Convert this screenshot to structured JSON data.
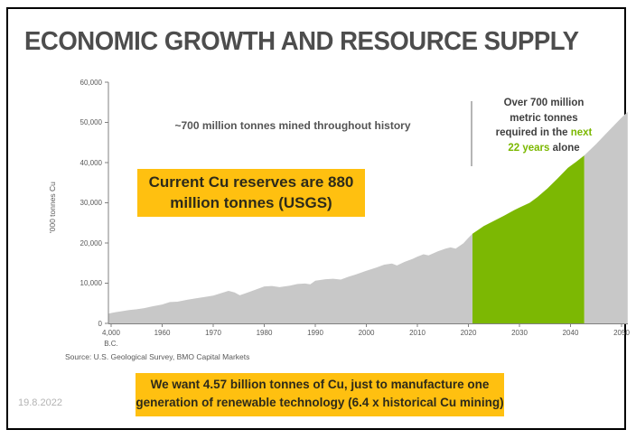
{
  "slide": {
    "title": "ECONOMIC GROWTH AND RESOURCE SUPPLY",
    "source": "Source: U.S. Geological Survey, BMO Capital Markets",
    "date": "19.8.2022"
  },
  "annotations": {
    "history_note": "~700 million tonnes mined throughout history",
    "reserves_box_lines": [
      "Current Cu reserves are 880",
      "million tonnes (USGS)"
    ],
    "demand_box_lines": [
      "We want 4.57 billion tonnes of Cu, just to manufacture one",
      "generation of renewable technology (6.4 x historical Cu mining)"
    ],
    "future_note_lines": [
      [
        {
          "t": "Over 700 million",
          "c": "dark"
        }
      ],
      [
        {
          "t": "metric tonnes",
          "c": "dark"
        }
      ],
      [
        {
          "t": "required in the ",
          "c": "dark"
        },
        {
          "t": "next",
          "c": "green"
        }
      ],
      [
        {
          "t": "22 years",
          "c": "green"
        },
        {
          "t": " alone",
          "c": "dark"
        }
      ]
    ]
  },
  "colors": {
    "title_gray": "#4d4d4d",
    "callout_yellow": "#ffc010",
    "area_gray": "#c8c8c8",
    "area_green": "#7cb803",
    "highlight_green_text": "#7bb800",
    "axis_gray": "#808080",
    "tick_text_gray": "#595959"
  },
  "chart_data": {
    "type": "area",
    "title": "",
    "xlabel": "",
    "ylabel": "'000 tonnes Cu",
    "ylim": [
      0,
      60000
    ],
    "grid": false,
    "legend": false,
    "y_ticks": [
      "0",
      "10,000",
      "20,000",
      "30,000",
      "40,000",
      "50,000",
      "60,000"
    ],
    "x_ticks": [
      {
        "label": "4,000",
        "sub": "B.C.",
        "pos": -1
      },
      {
        "label": "1960",
        "pos": 0
      },
      {
        "label": "1970",
        "pos": 1
      },
      {
        "label": "1980",
        "pos": 2
      },
      {
        "label": "1990",
        "pos": 3
      },
      {
        "label": "2000",
        "pos": 4
      },
      {
        "label": "2010",
        "pos": 5
      },
      {
        "label": "2020",
        "pos": 6
      },
      {
        "label": "2030",
        "pos": 7
      },
      {
        "label": "2040",
        "pos": 8
      },
      {
        "label": "2050",
        "pos": 9
      }
    ],
    "x_unit_note": "pos = decades after 1960; the 4,000 B.C. origin is compressed to pos -1; values in thousand tonnes Cu",
    "series": [
      {
        "name": "historical-cumulative-mined",
        "color": "#c8c8c8",
        "points": [
          [
            -1.06,
            2400
          ],
          [
            -0.95,
            2700
          ],
          [
            -0.8,
            3000
          ],
          [
            -0.65,
            3300
          ],
          [
            -0.5,
            3500
          ],
          [
            -0.35,
            3800
          ],
          [
            -0.2,
            4200
          ],
          [
            0,
            4700
          ],
          [
            0.15,
            5300
          ],
          [
            0.3,
            5400
          ],
          [
            0.5,
            5900
          ],
          [
            0.65,
            6200
          ],
          [
            0.85,
            6600
          ],
          [
            1.0,
            6900
          ],
          [
            1.15,
            7500
          ],
          [
            1.3,
            8100
          ],
          [
            1.42,
            7700
          ],
          [
            1.52,
            7000
          ],
          [
            1.68,
            7700
          ],
          [
            1.85,
            8500
          ],
          [
            2.0,
            9200
          ],
          [
            2.15,
            9300
          ],
          [
            2.3,
            9000
          ],
          [
            2.5,
            9400
          ],
          [
            2.65,
            9800
          ],
          [
            2.8,
            9900
          ],
          [
            2.9,
            9700
          ],
          [
            3.0,
            10600
          ],
          [
            3.2,
            11000
          ],
          [
            3.35,
            11100
          ],
          [
            3.5,
            10900
          ],
          [
            3.65,
            11600
          ],
          [
            3.8,
            12200
          ],
          [
            4.0,
            13100
          ],
          [
            4.2,
            13900
          ],
          [
            4.35,
            14600
          ],
          [
            4.5,
            14900
          ],
          [
            4.6,
            14400
          ],
          [
            4.75,
            15300
          ],
          [
            4.9,
            16000
          ],
          [
            5.0,
            16600
          ],
          [
            5.12,
            17200
          ],
          [
            5.22,
            16900
          ],
          [
            5.4,
            17900
          ],
          [
            5.55,
            18600
          ],
          [
            5.65,
            18900
          ],
          [
            5.75,
            18600
          ],
          [
            5.9,
            19900
          ],
          [
            6.0,
            21300
          ],
          [
            6.08,
            22300
          ]
        ]
      },
      {
        "name": "future-required-next-22-years",
        "color": "#7cb803",
        "points": [
          [
            6.08,
            22300
          ],
          [
            6.3,
            24200
          ],
          [
            6.5,
            25500
          ],
          [
            6.7,
            26800
          ],
          [
            6.9,
            28200
          ],
          [
            7.0,
            28800
          ],
          [
            7.2,
            30000
          ],
          [
            7.35,
            31400
          ],
          [
            7.55,
            33600
          ],
          [
            7.75,
            36100
          ],
          [
            7.95,
            38700
          ],
          [
            8.1,
            40100
          ],
          [
            8.27,
            41800
          ]
        ]
      },
      {
        "name": "beyond-2042-projection",
        "color": "#c8c8c8",
        "points": [
          [
            8.27,
            41800
          ],
          [
            8.5,
            44600
          ],
          [
            8.75,
            47900
          ],
          [
            9.0,
            51200
          ],
          [
            9.12,
            52600
          ]
        ]
      }
    ]
  }
}
